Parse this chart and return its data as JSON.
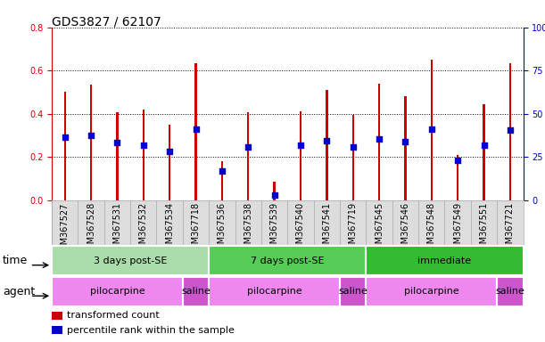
{
  "title": "GDS3827 / 62107",
  "samples": [
    "GSM367527",
    "GSM367528",
    "GSM367531",
    "GSM367532",
    "GSM367534",
    "GSM367718",
    "GSM367536",
    "GSM367538",
    "GSM367539",
    "GSM367540",
    "GSM367541",
    "GSM367719",
    "GSM367545",
    "GSM367546",
    "GSM367548",
    "GSM367549",
    "GSM367551",
    "GSM367721"
  ],
  "transformed_count": [
    0.5,
    0.535,
    0.405,
    0.42,
    0.35,
    0.635,
    0.18,
    0.405,
    0.085,
    0.41,
    0.51,
    0.395,
    0.54,
    0.48,
    0.65,
    0.21,
    0.445,
    0.635
  ],
  "percentile_rank": [
    0.29,
    0.3,
    0.265,
    0.255,
    0.225,
    0.33,
    0.135,
    0.245,
    0.025,
    0.255,
    0.275,
    0.245,
    0.285,
    0.27,
    0.33,
    0.185,
    0.255,
    0.325
  ],
  "bar_color": "#cc0000",
  "dot_color": "#0000cc",
  "ylim_left": [
    0,
    0.8
  ],
  "ylim_right": [
    0,
    100
  ],
  "yticks_left": [
    0,
    0.2,
    0.4,
    0.6,
    0.8
  ],
  "yticks_right": [
    0,
    25,
    50,
    75,
    100
  ],
  "time_groups": [
    {
      "label": "3 days post-SE",
      "start": 0,
      "end": 6,
      "color": "#aaddaa"
    },
    {
      "label": "7 days post-SE",
      "start": 6,
      "end": 12,
      "color": "#55cc55"
    },
    {
      "label": "immediate",
      "start": 12,
      "end": 18,
      "color": "#33bb33"
    }
  ],
  "agent_groups": [
    {
      "label": "pilocarpine",
      "start": 0,
      "end": 5,
      "color": "#ee88ee"
    },
    {
      "label": "saline",
      "start": 5,
      "end": 6,
      "color": "#cc55cc"
    },
    {
      "label": "pilocarpine",
      "start": 6,
      "end": 11,
      "color": "#ee88ee"
    },
    {
      "label": "saline",
      "start": 11,
      "end": 12,
      "color": "#cc55cc"
    },
    {
      "label": "pilocarpine",
      "start": 12,
      "end": 17,
      "color": "#ee88ee"
    },
    {
      "label": "saline",
      "start": 17,
      "end": 18,
      "color": "#cc55cc"
    }
  ],
  "legend_items": [
    {
      "label": "transformed count",
      "color": "#cc0000"
    },
    {
      "label": "percentile rank within the sample",
      "color": "#0000cc"
    }
  ],
  "time_label": "time",
  "agent_label": "agent",
  "bar_width": 0.08,
  "dot_size": 18,
  "background_color": "#ffffff",
  "left_axis_color": "#cc0000",
  "right_axis_color": "#0000cc",
  "xtick_bg_color": "#dddddd",
  "title_fontsize": 10,
  "label_fontsize": 9,
  "tick_fontsize": 7,
  "row_fontsize": 8
}
